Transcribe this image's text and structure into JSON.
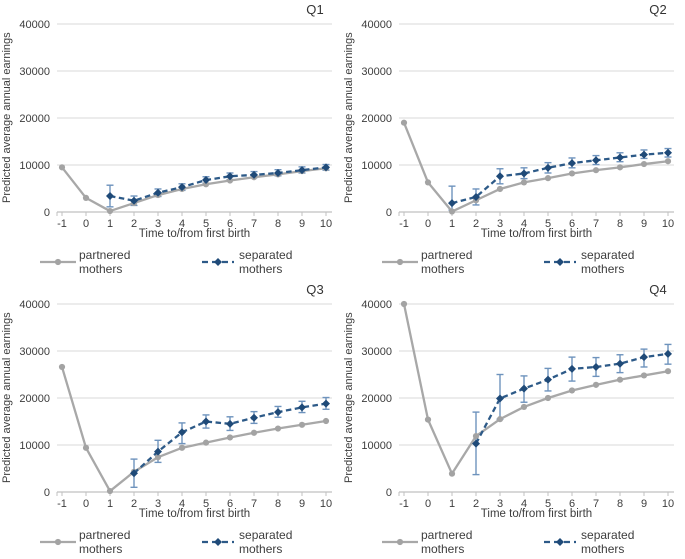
{
  "legend": {
    "partnered_label": "partnered mothers",
    "separated_label": "separated mothers"
  },
  "colors": {
    "partnered_line": "#a8a8a8",
    "partnered_marker": "#a3a3a3",
    "separated_line": "#2d5a88",
    "separated_marker": "#1f4a78",
    "errorbar": "#6e93bd",
    "gridline": "#d9d9d9",
    "axis": "#c0c0c0"
  },
  "chart_data": [
    {
      "type": "line",
      "title": "Q1",
      "xlabel": "Time to/from first birth",
      "ylabel": "Predicted average annual earnings",
      "ylim": [
        0,
        40000
      ],
      "yticks": [
        0,
        10000,
        20000,
        30000,
        40000
      ],
      "xticks": [
        -1,
        0,
        1,
        2,
        3,
        4,
        5,
        6,
        7,
        8,
        9,
        10
      ],
      "grid": "horizontal",
      "legend_position": "bottom",
      "series": [
        {
          "name": "partnered mothers",
          "x": [
            -1,
            0,
            1,
            2,
            3,
            4,
            5,
            6,
            7,
            8,
            9,
            10
          ],
          "y": [
            9500,
            3000,
            200,
            1900,
            3600,
            4900,
            5900,
            6700,
            7400,
            8000,
            8700,
            9300
          ]
        },
        {
          "name": "separated mothers",
          "x": [
            1,
            2,
            3,
            4,
            5,
            6,
            7,
            8,
            9,
            10
          ],
          "y": [
            3400,
            2400,
            4100,
            5300,
            6800,
            7600,
            7900,
            8300,
            8900,
            9500
          ],
          "err_lo": [
            1100,
            1400,
            3300,
            4600,
            6100,
            6900,
            7300,
            7700,
            8300,
            8900
          ],
          "err_hi": [
            5700,
            3400,
            4900,
            6000,
            7500,
            8300,
            8600,
            9000,
            9600,
            10100
          ]
        }
      ]
    },
    {
      "type": "line",
      "title": "Q2",
      "xlabel": "Time to/from first birth",
      "ylabel": "Predicted average annual earnings",
      "ylim": [
        0,
        40000
      ],
      "yticks": [
        0,
        10000,
        20000,
        30000,
        40000
      ],
      "xticks": [
        -1,
        0,
        1,
        2,
        3,
        4,
        5,
        6,
        7,
        8,
        9,
        10
      ],
      "grid": "horizontal",
      "legend_position": "bottom",
      "series": [
        {
          "name": "partnered mothers",
          "x": [
            -1,
            0,
            1,
            2,
            3,
            4,
            5,
            6,
            7,
            8,
            9,
            10
          ],
          "y": [
            19000,
            6300,
            100,
            2500,
            4900,
            6300,
            7200,
            8200,
            8900,
            9500,
            10200,
            10800
          ]
        },
        {
          "name": "separated mothers",
          "x": [
            1,
            2,
            3,
            4,
            5,
            6,
            7,
            8,
            9,
            10
          ],
          "y": [
            1900,
            3200,
            7600,
            8200,
            9400,
            10400,
            11000,
            11600,
            12200,
            12600
          ],
          "err_lo": [
            400,
            1500,
            6000,
            7100,
            8300,
            9400,
            10100,
            10700,
            11400,
            11700
          ],
          "err_hi": [
            5500,
            4900,
            9200,
            9400,
            10500,
            11500,
            12000,
            12600,
            13200,
            13500
          ]
        }
      ]
    },
    {
      "type": "line",
      "title": "Q3",
      "xlabel": "Time to/from first birth",
      "ylabel": "Predicted average annual earnings",
      "ylim": [
        0,
        40000
      ],
      "yticks": [
        0,
        10000,
        20000,
        30000,
        40000
      ],
      "xticks": [
        -1,
        0,
        1,
        2,
        3,
        4,
        5,
        6,
        7,
        8,
        9,
        10
      ],
      "grid": "horizontal",
      "legend_position": "bottom",
      "series": [
        {
          "name": "partnered mothers",
          "x": [
            -1,
            0,
            1,
            2,
            3,
            4,
            5,
            6,
            7,
            8,
            9,
            10
          ],
          "y": [
            26600,
            9400,
            200,
            4300,
            7400,
            9400,
            10500,
            11600,
            12600,
            13500,
            14300,
            15100
          ]
        },
        {
          "name": "separated mothers",
          "x": [
            2,
            3,
            4,
            5,
            6,
            7,
            8,
            9,
            10
          ],
          "y": [
            4000,
            8600,
            12700,
            15000,
            14500,
            15800,
            17000,
            18000,
            18800
          ],
          "err_lo": [
            1000,
            6300,
            10300,
            13600,
            13100,
            14600,
            15900,
            16900,
            17600
          ],
          "err_hi": [
            7000,
            11000,
            14700,
            16400,
            16000,
            17100,
            18200,
            19300,
            20100
          ]
        }
      ]
    },
    {
      "type": "line",
      "title": "Q4",
      "xlabel": "Time to/from first birth",
      "ylabel": "Predicted average annual earnings",
      "ylim": [
        0,
        40000
      ],
      "yticks": [
        0,
        10000,
        20000,
        30000,
        40000
      ],
      "xticks": [
        -1,
        0,
        1,
        2,
        3,
        4,
        5,
        6,
        7,
        8,
        9,
        10
      ],
      "grid": "horizontal",
      "legend_position": "bottom",
      "series": [
        {
          "name": "partnered mothers",
          "x": [
            -1,
            0,
            1,
            2,
            3,
            4,
            5,
            6,
            7,
            8,
            9,
            10
          ],
          "y": [
            40000,
            15400,
            3900,
            11900,
            15500,
            18100,
            20000,
            21600,
            22800,
            23900,
            24800,
            25700
          ]
        },
        {
          "name": "separated mothers",
          "x": [
            2,
            3,
            4,
            5,
            6,
            7,
            8,
            9,
            10
          ],
          "y": [
            10300,
            19900,
            22000,
            23900,
            26200,
            26600,
            27300,
            28700,
            29400
          ],
          "err_lo": [
            3700,
            15500,
            19100,
            21500,
            23600,
            24600,
            25400,
            26600,
            27200
          ],
          "err_hi": [
            17000,
            25000,
            24700,
            26300,
            28700,
            28600,
            29200,
            30400,
            31400
          ]
        }
      ]
    }
  ]
}
